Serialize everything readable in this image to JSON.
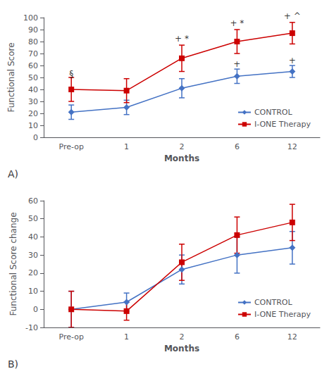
{
  "chart_data": [
    {
      "type": "line",
      "title": "A)",
      "xlabel": "Months",
      "ylabel": "Functional Score",
      "categories": [
        "Pre-op",
        "1",
        "2",
        "6",
        "12"
      ],
      "ylim": [
        0,
        100
      ],
      "yticks": [
        0,
        10,
        20,
        30,
        40,
        50,
        60,
        70,
        80,
        90,
        100
      ],
      "grid": false,
      "legend": "lower right",
      "series": [
        {
          "name": "CONTROL",
          "color": "#4472C4",
          "marker": "diamond",
          "values": [
            21,
            25,
            41,
            51,
            55
          ],
          "errors": [
            6,
            6,
            8,
            6,
            5
          ]
        },
        {
          "name": "I-ONE Therapy",
          "color": "#CC0000",
          "marker": "square",
          "values": [
            40,
            39,
            66,
            80,
            87
          ],
          "errors": [
            10,
            10,
            11,
            10,
            9
          ]
        }
      ],
      "annotations": [
        {
          "text": "§",
          "x": "Pre-op",
          "y": 49
        },
        {
          "text": "+ *",
          "x": "2",
          "y": 78
        },
        {
          "text": "+ *",
          "x": "6",
          "y": 91
        },
        {
          "text": "+ ^",
          "x": "12",
          "y": 97
        },
        {
          "text": "+",
          "x": "6",
          "y": 57
        },
        {
          "text": "+",
          "x": "12",
          "y": 60
        }
      ]
    },
    {
      "type": "line",
      "title": "B)",
      "xlabel": "Months",
      "ylabel": "Functional Score change",
      "categories": [
        "Pre-op",
        "1",
        "2",
        "6",
        "12"
      ],
      "ylim": [
        -10,
        60
      ],
      "yticks": [
        -10,
        0,
        10,
        20,
        30,
        40,
        50,
        60
      ],
      "grid": false,
      "legend": "lower right",
      "series": [
        {
          "name": "CONTROL",
          "color": "#4472C4",
          "marker": "diamond",
          "values": [
            0,
            4,
            22,
            30,
            34
          ],
          "errors": [
            10,
            5,
            8,
            10,
            9
          ]
        },
        {
          "name": "I-ONE Therapy",
          "color": "#CC0000",
          "marker": "square",
          "values": [
            0,
            -1,
            26,
            41,
            48
          ],
          "errors": [
            10,
            5,
            10,
            10,
            10
          ]
        }
      ]
    }
  ]
}
